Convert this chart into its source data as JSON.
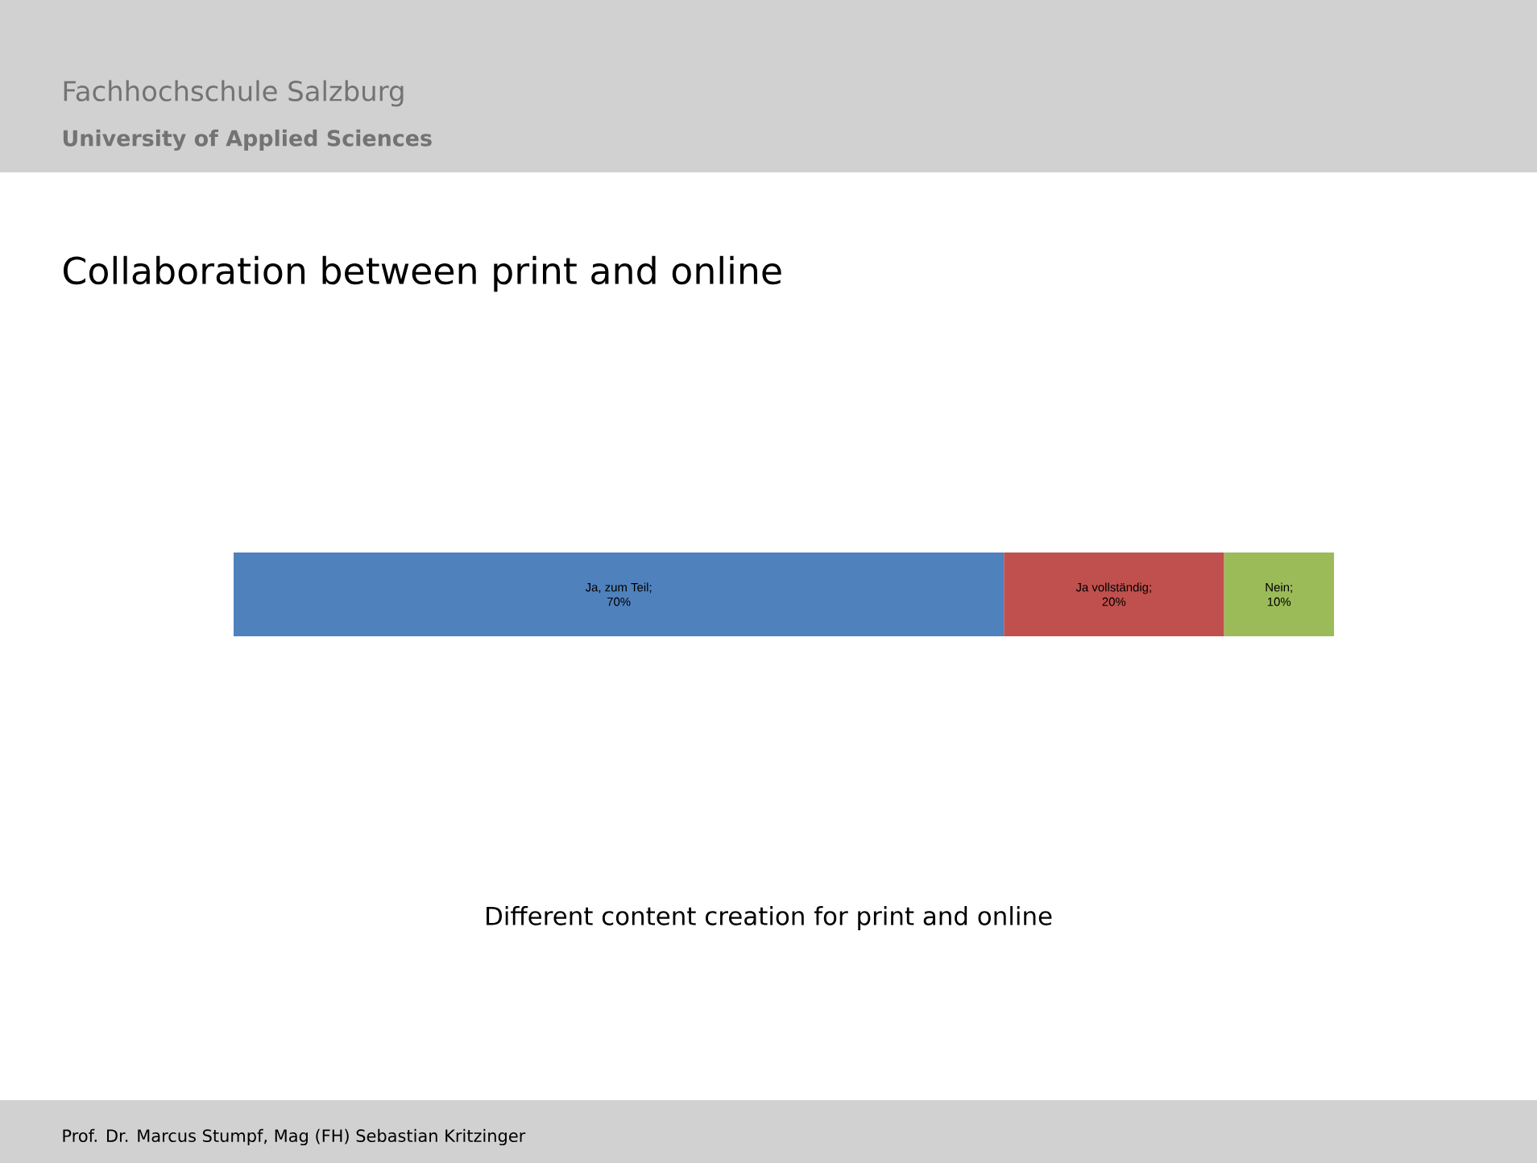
{
  "chart_data": {
    "type": "bar",
    "orientation": "horizontal",
    "stacked": true,
    "title": "Collaboration between print and online",
    "categories": [
      null
    ],
    "series": [
      {
        "name": "Ja, zum Teil;",
        "color": "#4f81bd",
        "values": [
          70
        ],
        "value_labels": [
          "70%"
        ]
      },
      {
        "name": "Ja vollständig;",
        "color": "#c0504d",
        "values": [
          20
        ],
        "value_labels": [
          "20%"
        ]
      },
      {
        "name": "Nein;",
        "color": "#9bbb59",
        "values": [
          10
        ],
        "value_labels": [
          "10%"
        ]
      }
    ],
    "annotations": [
      "Fachhochschule Salzburg",
      "University of Applied Sciences",
      "Different content creation for print and online",
      "Prof. Dr. Marcus Stumpf, Mag (FH) Sebastian Kritzinger"
    ]
  }
}
